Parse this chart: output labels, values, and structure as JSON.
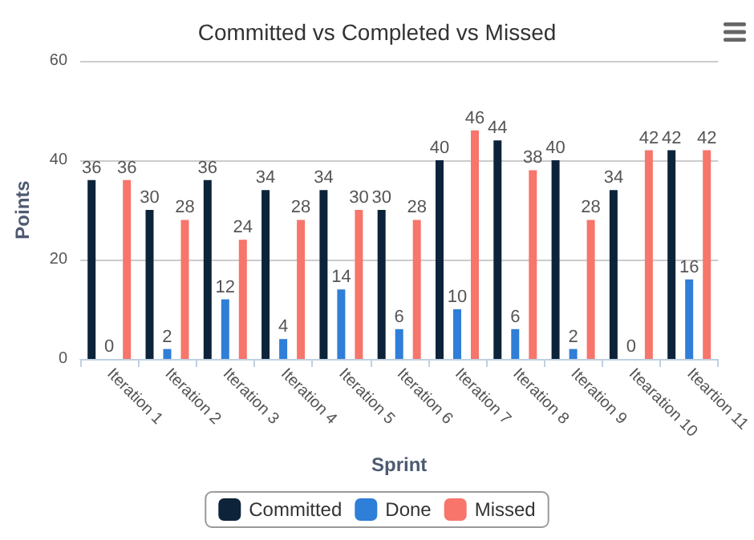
{
  "chart_data": {
    "type": "bar",
    "title": "Committed vs Completed vs Missed",
    "xlabel": "Sprint",
    "ylabel": "Points",
    "categories": [
      "Iteration 1",
      "Iteration 2",
      "Iteration 3",
      "Iteration 4",
      "Iteration 5",
      "Iteration 6",
      "Iteration 7",
      "Iteration 8",
      "Iteration 9",
      "Itearation 10",
      "Iteartion 11"
    ],
    "series": [
      {
        "name": "Committed",
        "color": "#0d233a",
        "values": [
          36,
          30,
          36,
          34,
          34,
          30,
          40,
          44,
          40,
          34,
          42
        ]
      },
      {
        "name": "Done",
        "color": "#2f7ed8",
        "values": [
          0,
          2,
          12,
          4,
          14,
          6,
          10,
          6,
          2,
          0,
          16
        ]
      },
      {
        "name": "Missed",
        "color": "#f7756b",
        "values": [
          36,
          28,
          24,
          28,
          30,
          28,
          46,
          38,
          28,
          42,
          42
        ]
      }
    ],
    "ylim": [
      0,
      60
    ],
    "yticks": [
      0,
      20,
      40,
      60
    ],
    "grid": "y",
    "legend": "bottom",
    "data_labels": true
  }
}
